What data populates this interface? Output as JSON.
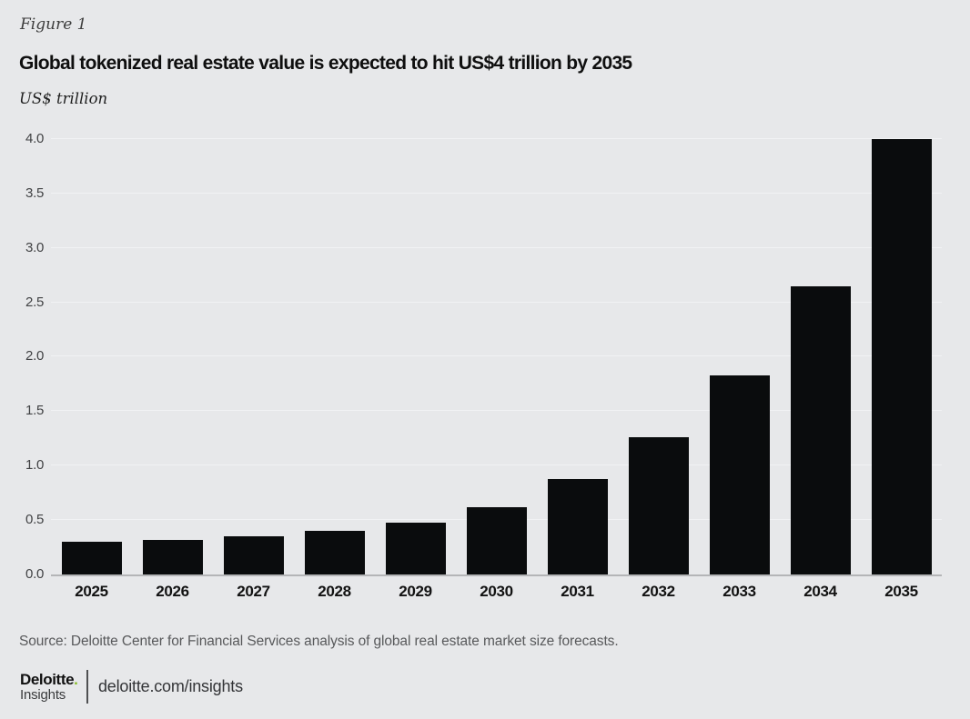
{
  "figure": {
    "label": "Figure 1",
    "title": "Global tokenized real estate value is expected to hit US$4 trillion by 2035",
    "unit": "US$ trillion",
    "source": "Source: Deloitte Center for Financial Services analysis of global real estate market size forecasts."
  },
  "chart_data": {
    "type": "bar",
    "categories": [
      "2025",
      "2026",
      "2027",
      "2028",
      "2029",
      "2030",
      "2031",
      "2032",
      "2033",
      "2034",
      "2035"
    ],
    "values": [
      0.3,
      0.32,
      0.35,
      0.4,
      0.48,
      0.62,
      0.88,
      1.26,
      1.83,
      2.65,
      4.0
    ],
    "title": "Global tokenized real estate value is expected to hit US$4 trillion by 2035",
    "xlabel": "",
    "ylabel": "US$ trillion",
    "ylim": [
      0,
      4.0
    ],
    "ytick_step": 0.5,
    "grid": true,
    "legend": "none",
    "bar_color": "#0a0c0d"
  },
  "footer": {
    "brand": "Deloitte",
    "brand_dot": ".",
    "brand_sub": "Insights",
    "url": "deloitte.com/insights"
  },
  "colors": {
    "background": "#e7e8ea",
    "bar": "#0a0c0d",
    "accent_green": "#86bc25",
    "gridline": "#f1f2f4",
    "baseline": "#b4b5b7"
  }
}
